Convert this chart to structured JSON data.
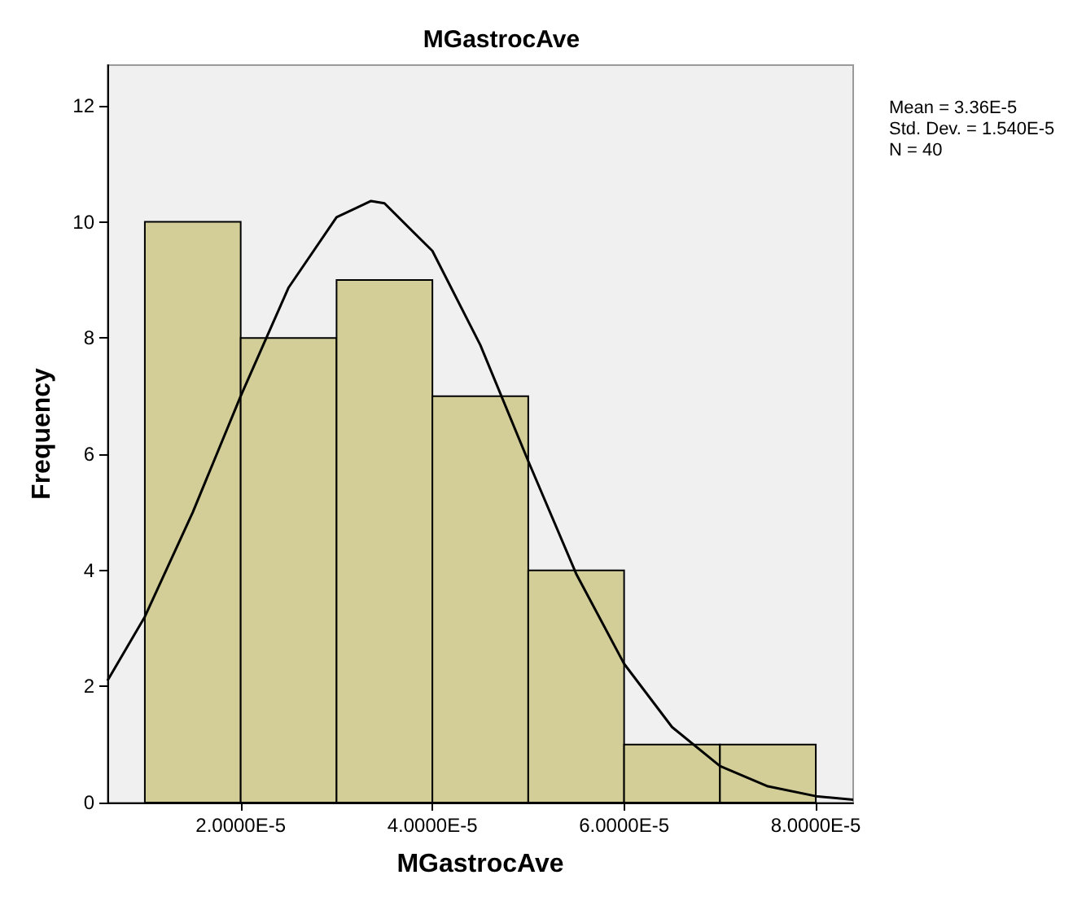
{
  "chart_data": {
    "type": "histogram",
    "title": "MGastrocAve",
    "xlabel": "MGastrocAve",
    "ylabel": "Frequency",
    "annotations": [
      "Mean = 3.36E-5",
      "Std. Dev. = 1.540E-5",
      "N = 40"
    ],
    "xlim": [
      6.1e-06,
      8.39e-05
    ],
    "xticks": [
      {
        "value": 2e-05,
        "label": "2.0000E-5"
      },
      {
        "value": 4e-05,
        "label": "4.0000E-5"
      },
      {
        "value": 6e-05,
        "label": "6.0000E-5"
      },
      {
        "value": 8e-05,
        "label": "8.0000E-5"
      }
    ],
    "ylim": [
      0,
      12.7
    ],
    "yticks": [
      0,
      2,
      4,
      6,
      8,
      10,
      12
    ],
    "grid": false,
    "series": [
      {
        "color": "#d3ce97",
        "bins": [
          1e-05,
          2e-05,
          3e-05,
          4e-05,
          5e-05,
          6e-05,
          7e-05,
          8e-05
        ],
        "values": [
          10,
          8,
          9,
          7,
          4,
          1,
          1
        ]
      },
      {
        "type": "line",
        "color": "#000000",
        "marker": "none",
        "x": [
          6.1e-06,
          1e-05,
          1.5e-05,
          2e-05,
          2.5e-05,
          3e-05,
          3.36e-05,
          3.5e-05,
          4e-05,
          4.5e-05,
          5e-05,
          5.5e-05,
          6e-05,
          6.5e-05,
          7e-05,
          7.5e-05,
          8e-05,
          8.39e-05
        ],
        "values": [
          2.1,
          3.2,
          5.0,
          7.0,
          8.87,
          10.08,
          10.36,
          10.32,
          9.5,
          7.88,
          5.88,
          3.94,
          2.39,
          1.3,
          0.63,
          0.28,
          0.11,
          0.05
        ]
      }
    ]
  }
}
